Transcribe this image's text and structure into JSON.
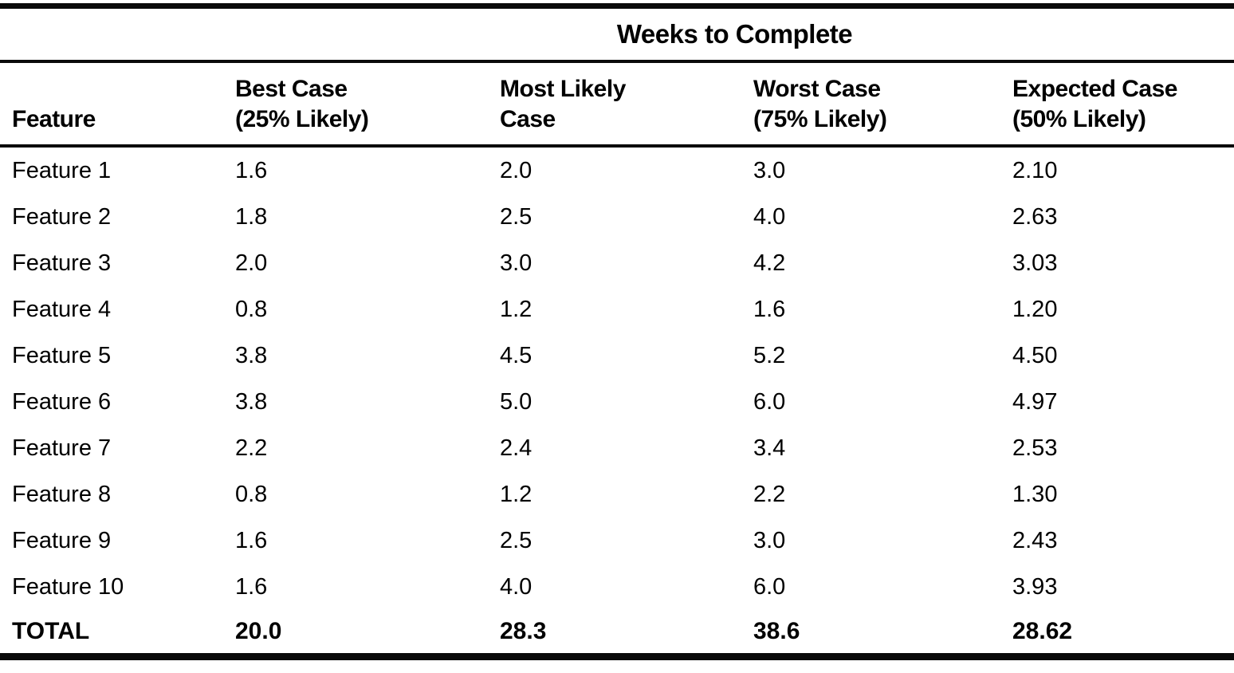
{
  "table": {
    "spanning_header": "Weeks to Complete",
    "columns": {
      "feature": {
        "line1": "Feature"
      },
      "best": {
        "line1": "Best Case",
        "line2": "(25% Likely)"
      },
      "likely": {
        "line1": "Most Likely",
        "line2": "Case"
      },
      "worst": {
        "line1": "Worst Case",
        "line2": "(75% Likely)"
      },
      "expected": {
        "line1": "Expected Case",
        "line2": "(50% Likely)"
      }
    },
    "rows": [
      {
        "feature": "Feature 1",
        "best": "1.6",
        "likely": "2.0",
        "worst": "3.0",
        "expected": "2.10"
      },
      {
        "feature": "Feature 2",
        "best": "1.8",
        "likely": "2.5",
        "worst": "4.0",
        "expected": "2.63"
      },
      {
        "feature": "Feature 3",
        "best": "2.0",
        "likely": "3.0",
        "worst": "4.2",
        "expected": "3.03"
      },
      {
        "feature": "Feature 4",
        "best": "0.8",
        "likely": "1.2",
        "worst": "1.6",
        "expected": "1.20"
      },
      {
        "feature": "Feature 5",
        "best": "3.8",
        "likely": "4.5",
        "worst": "5.2",
        "expected": "4.50"
      },
      {
        "feature": "Feature 6",
        "best": "3.8",
        "likely": "5.0",
        "worst": "6.0",
        "expected": "4.97"
      },
      {
        "feature": "Feature 7",
        "best": "2.2",
        "likely": "2.4",
        "worst": "3.4",
        "expected": "2.53"
      },
      {
        "feature": "Feature 8",
        "best": "0.8",
        "likely": "1.2",
        "worst": "2.2",
        "expected": "1.30"
      },
      {
        "feature": "Feature 9",
        "best": "1.6",
        "likely": "2.5",
        "worst": "3.0",
        "expected": "2.43"
      },
      {
        "feature": "Feature 10",
        "best": "1.6",
        "likely": "4.0",
        "worst": "6.0",
        "expected": "3.93"
      }
    ],
    "total": {
      "feature": "TOTAL",
      "best": "20.0",
      "likely": "28.3",
      "worst": "38.6",
      "expected": "28.62"
    }
  },
  "colors": {
    "ink": "#0a0a0a",
    "paper": "#ffffff"
  }
}
